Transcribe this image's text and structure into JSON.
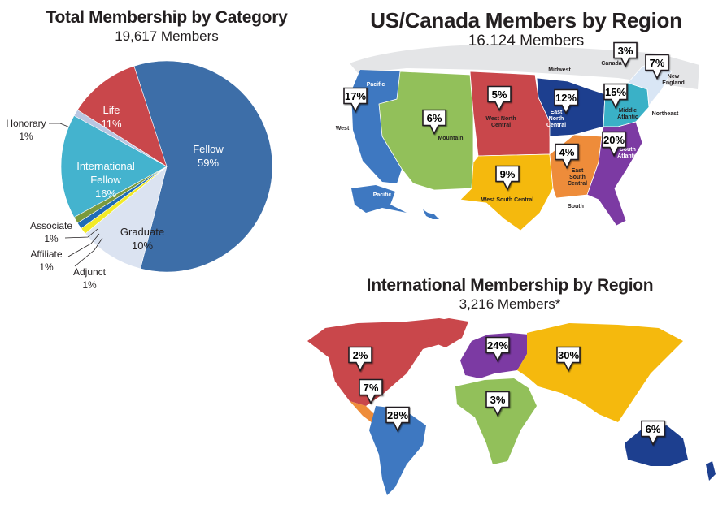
{
  "pie": {
    "title": "Total Membership by Category",
    "subtitle": "19,617 Members"
  },
  "us": {
    "title": "US/Canada Members by Region",
    "subtitle": "16,124 Members"
  },
  "intl": {
    "title": "International Membership by Region",
    "subtitle": "3,216 Members*"
  },
  "colors": {
    "fellow": "#3d6ea8",
    "life": "#c9474b",
    "honorary": "#b9c6e2",
    "international": "#44b3ce",
    "associate": "#7a9a3c",
    "affiliate": "#1f6cb5",
    "adjunct": "#f2ea27",
    "graduate": "#dbe3f1"
  },
  "chart_data": [
    {
      "type": "pie",
      "title": "Total Membership by Category",
      "subtitle": "19,617 Members",
      "slices": [
        {
          "name": "Fellow",
          "value": 59,
          "label": "59%",
          "color": "#3d6ea8"
        },
        {
          "name": "Graduate",
          "value": 10,
          "label": "10%",
          "color": "#dbe3f1"
        },
        {
          "name": "Adjunct",
          "value": 1,
          "label": "1%",
          "color": "#f2ea27"
        },
        {
          "name": "Affiliate",
          "value": 1,
          "label": "1%",
          "color": "#1f6cb5"
        },
        {
          "name": "Associate",
          "value": 1,
          "label": "1%",
          "color": "#7a9a3c"
        },
        {
          "name": "International Fellow",
          "value": 16,
          "label": "16%",
          "color": "#44b3ce"
        },
        {
          "name": "Honorary",
          "value": 1,
          "label": "1%",
          "color": "#b9c6e2"
        },
        {
          "name": "Life",
          "value": 11,
          "label": "11%",
          "color": "#c9474b"
        }
      ]
    },
    {
      "type": "map",
      "title": "US/Canada Members by Region",
      "subtitle": "16,124 Members",
      "regions": [
        {
          "name": "Pacific",
          "value": "17%"
        },
        {
          "name": "Mountain",
          "value": "6%"
        },
        {
          "name": "West North Central",
          "value": "5%"
        },
        {
          "name": "East North Central",
          "value": "12%"
        },
        {
          "name": "Middle Atlantic",
          "value": "15%"
        },
        {
          "name": "Canada",
          "value": "3%"
        },
        {
          "name": "New England",
          "value": "7%"
        },
        {
          "name": "West South Central",
          "value": "9%"
        },
        {
          "name": "East South Central",
          "value": "4%"
        },
        {
          "name": "South Atlantic",
          "value": "20%"
        }
      ],
      "area_labels": [
        "West",
        "Midwest",
        "Northeast",
        "South",
        "Pacific"
      ]
    },
    {
      "type": "map",
      "title": "International Membership by Region",
      "subtitle": "3,216 Members*",
      "regions": [
        {
          "name": "North America",
          "value": "2%"
        },
        {
          "name": "Central America",
          "value": "7%"
        },
        {
          "name": "South America",
          "value": "28%"
        },
        {
          "name": "Europe",
          "value": "24%"
        },
        {
          "name": "Africa",
          "value": "3%"
        },
        {
          "name": "Asia",
          "value": "30%"
        },
        {
          "name": "Oceania",
          "value": "6%"
        }
      ]
    }
  ],
  "us_labels": {
    "pacific": "Pacific",
    "west": "West",
    "mountain": "Mountain",
    "midwest": "Midwest",
    "wnc": "West North Central",
    "enc": "East North Central",
    "canada": "Canada",
    "new_england": "New England",
    "mid_atl": "Middle Atlantic",
    "northeast": "Northeast",
    "south_atl": "South Atlantic",
    "esc": "East South Central",
    "wsc": "West South Central",
    "south": "South",
    "pacific_ak": "Pacific"
  }
}
